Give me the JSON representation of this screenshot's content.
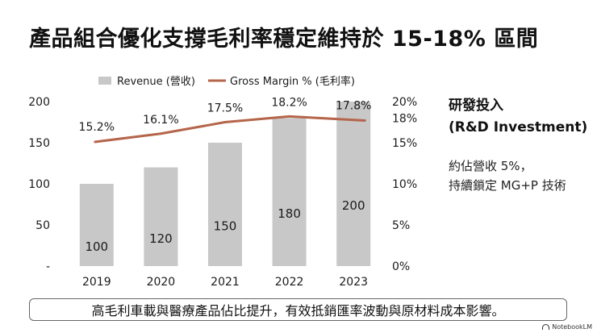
{
  "title": "產品組合優化支撐毛利率穩定維持於 15-18% 區間",
  "side_panel": {
    "title_line1": "研發投入",
    "title_line2": "(R&D Investment)",
    "desc_line1": "約佔營收 5%，",
    "desc_line2": "持續鎖定 MG+P 技術"
  },
  "footer": "高毛利車載與醫療產品佔比提升，有效抵銷匯率波動與原材料成本影響。",
  "brand": "NotebookLM",
  "colors": {
    "bar": "#c8c8c8",
    "line": "#b5654a",
    "text": "#1a1a1a"
  },
  "chart_data": {
    "type": "bar",
    "categories": [
      "2019",
      "2020",
      "2021",
      "2022",
      "2023"
    ],
    "series": [
      {
        "name": "Revenue (營收)",
        "type": "bar",
        "axis": "left",
        "values": [
          100,
          120,
          150,
          180,
          200
        ],
        "labels": [
          "100",
          "120",
          "150",
          "180",
          "200"
        ]
      },
      {
        "name": "Gross Margin % (毛利率)",
        "type": "line",
        "axis": "right",
        "values": [
          15.2,
          16.1,
          17.5,
          18.2,
          17.8
        ],
        "labels": [
          "15.2%",
          "16.1%",
          "17.5%",
          "18.2%",
          "17.8%"
        ]
      }
    ],
    "y_left": {
      "ylim": [
        0,
        200
      ],
      "ticks": [
        200,
        150,
        100,
        50,
        0
      ],
      "tick_labels": [
        "200",
        "150",
        "100",
        "50",
        "-"
      ]
    },
    "y_right": {
      "ylim": [
        0,
        20
      ],
      "ticks": [
        20,
        18,
        15,
        10,
        5,
        0
      ],
      "tick_labels": [
        "20%",
        "18%",
        "15%",
        "10%",
        "5%",
        "0%"
      ]
    },
    "legend": "top"
  }
}
